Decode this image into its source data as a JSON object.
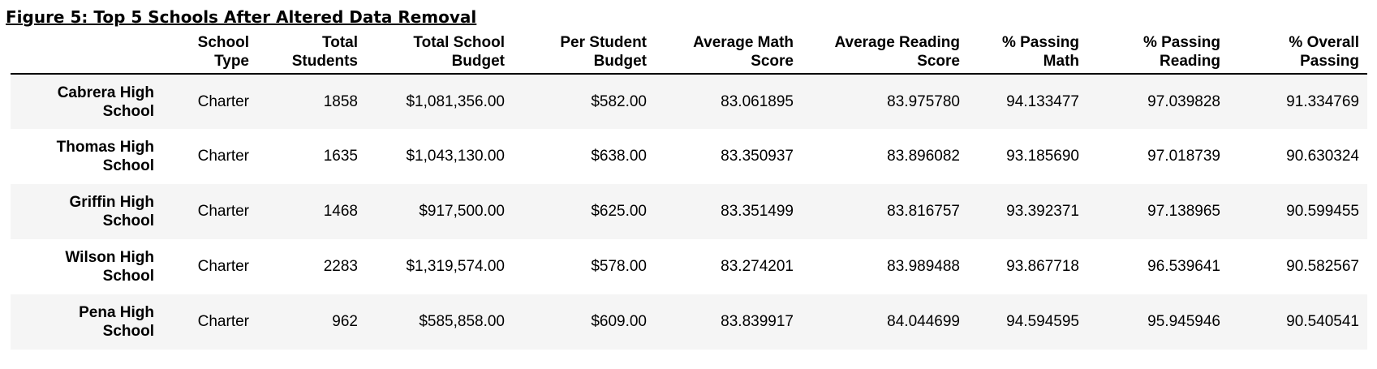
{
  "figure_title": "Figure 5: Top 5 Schools After Altered Data Removal",
  "chart_data": {
    "type": "table",
    "title": "Figure 5: Top 5 Schools After Altered Data Removal",
    "columns": [
      [
        "School",
        "Type"
      ],
      [
        "Total",
        "Students"
      ],
      [
        "Total School",
        "Budget"
      ],
      [
        "Per Student",
        "Budget"
      ],
      [
        "Average Math",
        "Score"
      ],
      [
        "Average Reading",
        "Score"
      ],
      [
        "% Passing",
        "Math"
      ],
      [
        "% Passing",
        "Reading"
      ],
      [
        "% Overall",
        "Passing"
      ]
    ],
    "rows": [
      {
        "name": [
          "Cabrera High",
          "School"
        ],
        "cells": [
          "Charter",
          "1858",
          "$1,081,356.00",
          "$582.00",
          "83.061895",
          "83.975780",
          "94.133477",
          "97.039828",
          "91.334769"
        ]
      },
      {
        "name": [
          "Thomas High",
          "School"
        ],
        "cells": [
          "Charter",
          "1635",
          "$1,043,130.00",
          "$638.00",
          "83.350937",
          "83.896082",
          "93.185690",
          "97.018739",
          "90.630324"
        ]
      },
      {
        "name": [
          "Griffin High",
          "School"
        ],
        "cells": [
          "Charter",
          "1468",
          "$917,500.00",
          "$625.00",
          "83.351499",
          "83.816757",
          "93.392371",
          "97.138965",
          "90.599455"
        ]
      },
      {
        "name": [
          "Wilson High",
          "School"
        ],
        "cells": [
          "Charter",
          "2283",
          "$1,319,574.00",
          "$578.00",
          "83.274201",
          "83.989488",
          "93.867718",
          "96.539641",
          "90.582567"
        ]
      },
      {
        "name": [
          "Pena High",
          "School"
        ],
        "cells": [
          "Charter",
          "962",
          "$585,858.00",
          "$609.00",
          "83.839917",
          "84.044699",
          "94.594595",
          "95.945946",
          "90.540541"
        ]
      }
    ]
  }
}
